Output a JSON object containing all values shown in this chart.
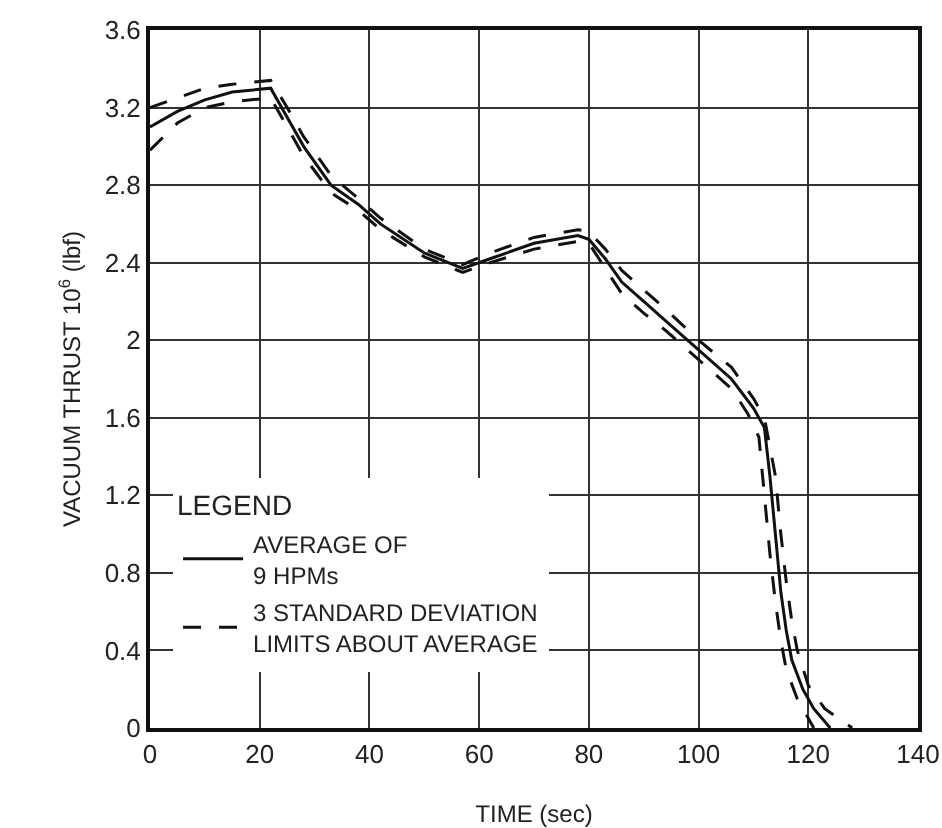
{
  "chart_data": {
    "type": "line",
    "xlabel": "TIME (sec)",
    "ylabel": "VACUUM THRUST 10$^{6}$ (lbf)",
    "legend_title": "LEGEND",
    "legend": "bottom left",
    "grid": true,
    "marker": "none",
    "xlim": [
      0,
      140
    ],
    "xticks": [
      0,
      20,
      40,
      60,
      80,
      100,
      120,
      140
    ],
    "ylim": [
      0,
      3.6
    ],
    "yticks": [
      0,
      0.4,
      0.8,
      1.2,
      1.6,
      2.0,
      2.4,
      2.8,
      3.2,
      3.6
    ],
    "series": [
      {
        "name": "AVERAGE OF 9 HPMs",
        "color": "#111111",
        "line_style": "solid",
        "x": [
          0,
          5,
          10,
          15,
          22,
          25,
          28,
          33,
          38,
          42,
          50,
          57,
          62,
          70,
          78,
          80,
          83,
          86,
          90,
          94,
          100,
          106,
          110,
          112,
          113,
          114,
          115,
          116,
          117,
          119,
          121,
          124
        ],
        "values": [
          3.1,
          3.18,
          3.24,
          3.28,
          3.3,
          3.15,
          3.0,
          2.8,
          2.7,
          2.6,
          2.45,
          2.37,
          2.42,
          2.5,
          2.54,
          2.52,
          2.42,
          2.3,
          2.2,
          2.1,
          1.95,
          1.8,
          1.65,
          1.55,
          1.3,
          1.0,
          0.7,
          0.5,
          0.35,
          0.2,
          0.1,
          0
        ]
      },
      {
        "name": "3 STANDARD DEVIATION LIMITS ABOUT AVERAGE",
        "color": "#111111",
        "line_style": "dashed",
        "x": [
          0,
          5,
          10,
          15,
          22,
          25,
          28,
          33,
          38,
          42,
          50,
          57,
          62,
          70,
          78,
          80,
          83,
          86,
          90,
          94,
          100,
          106,
          110,
          112,
          114,
          115,
          116,
          117,
          118,
          120,
          123,
          128
        ],
        "values": [
          3.2,
          3.25,
          3.3,
          3.32,
          3.34,
          3.2,
          3.05,
          2.85,
          2.73,
          2.63,
          2.47,
          2.39,
          2.45,
          2.53,
          2.57,
          2.56,
          2.47,
          2.36,
          2.26,
          2.16,
          2.0,
          1.86,
          1.7,
          1.6,
          1.3,
          1.0,
          0.75,
          0.55,
          0.4,
          0.22,
          0.1,
          0
        ]
      },
      {
        "color": "#111111",
        "line_style": "dashed",
        "x": [
          0,
          5,
          10,
          15,
          22,
          25,
          28,
          33,
          38,
          42,
          50,
          57,
          62,
          70,
          78,
          80,
          83,
          86,
          90,
          94,
          100,
          106,
          109,
          111,
          112,
          113,
          114,
          115,
          116,
          118,
          120,
          121
        ],
        "values": [
          2.98,
          3.12,
          3.2,
          3.23,
          3.25,
          3.1,
          2.95,
          2.76,
          2.67,
          2.57,
          2.43,
          2.35,
          2.4,
          2.47,
          2.51,
          2.5,
          2.37,
          2.24,
          2.14,
          2.05,
          1.9,
          1.75,
          1.62,
          1.5,
          1.2,
          0.9,
          0.65,
          0.45,
          0.3,
          0.15,
          0.05,
          0
        ]
      }
    ]
  }
}
